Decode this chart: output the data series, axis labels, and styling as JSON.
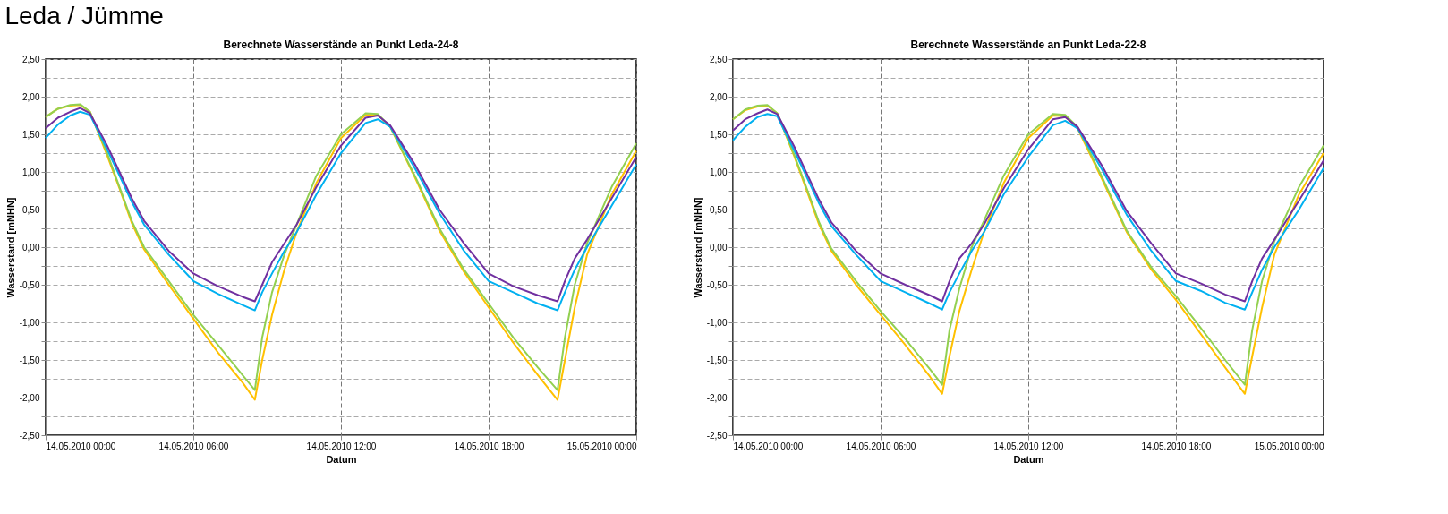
{
  "chart_data": [
    {
      "type": "line",
      "title": "Berechnete Wasserstände an Punkt Leda-24-8",
      "annotations": [
        "Leda / Jümme"
      ],
      "xlabel": "Datum",
      "ylabel": "Wasserstand [mNHN]",
      "grid": true,
      "legend": false,
      "line_style": "solid",
      "x": [
        "2010-05-14T00:00",
        "2010-05-14T00:30",
        "2010-05-14T01:00",
        "2010-05-14T01:24",
        "2010-05-14T01:48",
        "2010-05-14T02:30",
        "2010-05-14T03:00",
        "2010-05-14T03:30",
        "2010-05-14T04:00",
        "2010-05-14T05:00",
        "2010-05-14T06:00",
        "2010-05-14T07:00",
        "2010-05-14T08:00",
        "2010-05-14T08:30",
        "2010-05-14T08:48",
        "2010-05-14T09:12",
        "2010-05-14T09:42",
        "2010-05-14T10:12",
        "2010-05-14T11:00",
        "2010-05-14T12:00",
        "2010-05-14T13:00",
        "2010-05-14T13:30",
        "2010-05-14T14:00",
        "2010-05-14T15:00",
        "2010-05-14T16:00",
        "2010-05-14T17:00",
        "2010-05-14T18:00",
        "2010-05-14T19:00",
        "2010-05-14T20:00",
        "2010-05-14T20:48",
        "2010-05-14T21:06",
        "2010-05-14T21:30",
        "2010-05-14T22:00",
        "2010-05-14T23:00",
        "2010-05-15T00:00"
      ],
      "xlim": [
        "2010-05-14T00:00",
        "2010-05-15T00:00"
      ],
      "xticks": [
        {
          "value": "2010-05-14T00:00",
          "label": "14.05.2010 00:00"
        },
        {
          "value": "2010-05-14T06:00",
          "label": "14.05.2010 06:00"
        },
        {
          "value": "2010-05-14T12:00",
          "label": "14.05.2010 12:00"
        },
        {
          "value": "2010-05-14T18:00",
          "label": "14.05.2010 18:00"
        },
        {
          "value": "2010-05-15T00:00",
          "label": "15.05.2010 00:00"
        }
      ],
      "ylim": [
        -2.5,
        2.5
      ],
      "yticks": [
        {
          "value": -2.5,
          "label": "-2,50"
        },
        {
          "value": -2.25,
          "label": null
        },
        {
          "value": -2,
          "label": "-2,00"
        },
        {
          "value": -1.75,
          "label": null
        },
        {
          "value": -1.5,
          "label": "-1,50"
        },
        {
          "value": -1.25,
          "label": null
        },
        {
          "value": -1,
          "label": "-1,00"
        },
        {
          "value": -0.75,
          "label": null
        },
        {
          "value": -0.5,
          "label": "-0,50"
        },
        {
          "value": -0.25,
          "label": null
        },
        {
          "value": 0,
          "label": "0,00"
        },
        {
          "value": 0.25,
          "label": null
        },
        {
          "value": 0.5,
          "label": "0,50"
        },
        {
          "value": 0.75,
          "label": null
        },
        {
          "value": 1,
          "label": "1,00"
        },
        {
          "value": 1.25,
          "label": null
        },
        {
          "value": 1.5,
          "label": "1,50"
        },
        {
          "value": 1.75,
          "label": null
        },
        {
          "value": 2,
          "label": "2,00"
        },
        {
          "value": 2.25,
          "label": null
        },
        {
          "value": 2.5,
          "label": "2,50"
        }
      ],
      "series": [
        {
          "color": "#ffc000",
          "values": [
            1.73,
            1.84,
            1.88,
            1.89,
            1.8,
            1.22,
            0.78,
            0.32,
            -0.03,
            -0.5,
            -0.95,
            -1.4,
            -1.8,
            -2.03,
            -1.5,
            -0.9,
            -0.3,
            0.2,
            0.85,
            1.45,
            1.76,
            1.76,
            1.6,
            0.93,
            0.22,
            -0.33,
            -0.8,
            -1.27,
            -1.7,
            -2.03,
            -1.5,
            -0.8,
            -0.1,
            0.7,
            1.28
          ]
        },
        {
          "color": "#92d050",
          "values": [
            1.73,
            1.84,
            1.89,
            1.9,
            1.8,
            1.25,
            0.8,
            0.35,
            0.0,
            -0.45,
            -0.9,
            -1.3,
            -1.7,
            -1.9,
            -1.2,
            -0.6,
            -0.1,
            0.3,
            0.95,
            1.5,
            1.78,
            1.77,
            1.6,
            0.95,
            0.25,
            -0.3,
            -0.75,
            -1.2,
            -1.6,
            -1.9,
            -1.2,
            -0.5,
            0.05,
            0.8,
            1.38
          ]
        },
        {
          "color": "#00b0f0",
          "values": [
            1.45,
            1.63,
            1.75,
            1.8,
            1.76,
            1.3,
            0.95,
            0.6,
            0.3,
            -0.1,
            -0.45,
            -0.62,
            -0.77,
            -0.84,
            -0.6,
            -0.35,
            -0.05,
            0.2,
            0.7,
            1.25,
            1.65,
            1.7,
            1.6,
            1.05,
            0.45,
            -0.05,
            -0.45,
            -0.6,
            -0.75,
            -0.84,
            -0.6,
            -0.3,
            0.0,
            0.55,
            1.1
          ]
        },
        {
          "color": "#7030a0",
          "values": [
            1.58,
            1.72,
            1.8,
            1.85,
            1.78,
            1.35,
            1.0,
            0.65,
            0.35,
            -0.05,
            -0.35,
            -0.52,
            -0.66,
            -0.72,
            -0.5,
            -0.2,
            0.05,
            0.3,
            0.8,
            1.35,
            1.72,
            1.75,
            1.62,
            1.1,
            0.5,
            0.05,
            -0.35,
            -0.52,
            -0.64,
            -0.72,
            -0.45,
            -0.15,
            0.1,
            0.65,
            1.2
          ]
        }
      ]
    },
    {
      "type": "line",
      "title": "Berechnete Wasserstände an Punkt Leda-22-8",
      "xlabel": "Datum",
      "ylabel": "Wasserstand [mNHN]",
      "grid": true,
      "legend": false,
      "line_style": "solid",
      "x": [
        "2010-05-14T00:00",
        "2010-05-14T00:30",
        "2010-05-14T01:00",
        "2010-05-14T01:24",
        "2010-05-14T01:48",
        "2010-05-14T02:30",
        "2010-05-14T03:00",
        "2010-05-14T03:30",
        "2010-05-14T04:00",
        "2010-05-14T05:00",
        "2010-05-14T06:00",
        "2010-05-14T07:00",
        "2010-05-14T08:00",
        "2010-05-14T08:30",
        "2010-05-14T08:48",
        "2010-05-14T09:12",
        "2010-05-14T09:42",
        "2010-05-14T10:12",
        "2010-05-14T11:00",
        "2010-05-14T12:00",
        "2010-05-14T13:00",
        "2010-05-14T13:30",
        "2010-05-14T14:00",
        "2010-05-14T15:00",
        "2010-05-14T16:00",
        "2010-05-14T17:00",
        "2010-05-14T18:00",
        "2010-05-14T19:00",
        "2010-05-14T20:00",
        "2010-05-14T20:48",
        "2010-05-14T21:06",
        "2010-05-14T21:30",
        "2010-05-14T22:00",
        "2010-05-14T23:00",
        "2010-05-15T00:00"
      ],
      "xlim": [
        "2010-05-14T00:00",
        "2010-05-15T00:00"
      ],
      "xticks": [
        {
          "value": "2010-05-14T00:00",
          "label": "14.05.2010 00:00"
        },
        {
          "value": "2010-05-14T06:00",
          "label": "14.05.2010 06:00"
        },
        {
          "value": "2010-05-14T12:00",
          "label": "14.05.2010 12:00"
        },
        {
          "value": "2010-05-14T18:00",
          "label": "14.05.2010 18:00"
        },
        {
          "value": "2010-05-15T00:00",
          "label": "15.05.2010 00:00"
        }
      ],
      "ylim": [
        -2.5,
        2.5
      ],
      "yticks": [
        {
          "value": -2.5,
          "label": "-2,50"
        },
        {
          "value": -2.25,
          "label": null
        },
        {
          "value": -2,
          "label": "-2,00"
        },
        {
          "value": -1.75,
          "label": null
        },
        {
          "value": -1.5,
          "label": "-1,50"
        },
        {
          "value": -1.25,
          "label": null
        },
        {
          "value": -1,
          "label": "-1,00"
        },
        {
          "value": -0.75,
          "label": null
        },
        {
          "value": -0.5,
          "label": "-0,50"
        },
        {
          "value": -0.25,
          "label": null
        },
        {
          "value": 0,
          "label": "0,00"
        },
        {
          "value": 0.25,
          "label": null
        },
        {
          "value": 0.5,
          "label": "0,50"
        },
        {
          "value": 0.75,
          "label": null
        },
        {
          "value": 1,
          "label": "1,00"
        },
        {
          "value": 1.25,
          "label": null
        },
        {
          "value": 1.5,
          "label": "1,50"
        },
        {
          "value": 1.75,
          "label": null
        },
        {
          "value": 2,
          "label": "2,00"
        },
        {
          "value": 2.25,
          "label": null
        },
        {
          "value": 2.5,
          "label": "2,50"
        }
      ],
      "series": [
        {
          "color": "#ffc000",
          "values": [
            1.7,
            1.82,
            1.87,
            1.88,
            1.78,
            1.2,
            0.75,
            0.3,
            -0.05,
            -0.5,
            -0.9,
            -1.3,
            -1.72,
            -1.95,
            -1.45,
            -0.85,
            -0.3,
            0.2,
            0.85,
            1.45,
            1.75,
            1.74,
            1.58,
            0.9,
            0.2,
            -0.3,
            -0.7,
            -1.15,
            -1.6,
            -1.95,
            -1.45,
            -0.8,
            -0.1,
            0.7,
            1.25
          ]
        },
        {
          "color": "#92d050",
          "values": [
            1.7,
            1.83,
            1.88,
            1.89,
            1.78,
            1.22,
            0.78,
            0.33,
            -0.02,
            -0.45,
            -0.85,
            -1.22,
            -1.62,
            -1.83,
            -1.1,
            -0.55,
            0.0,
            0.35,
            0.95,
            1.5,
            1.77,
            1.76,
            1.6,
            0.93,
            0.22,
            -0.27,
            -0.65,
            -1.07,
            -1.5,
            -1.83,
            -1.1,
            -0.45,
            0.08,
            0.8,
            1.35
          ]
        },
        {
          "color": "#00b0f0",
          "values": [
            1.42,
            1.6,
            1.73,
            1.77,
            1.74,
            1.28,
            0.93,
            0.58,
            0.28,
            -0.1,
            -0.45,
            -0.6,
            -0.75,
            -0.83,
            -0.6,
            -0.35,
            -0.05,
            0.2,
            0.7,
            1.2,
            1.62,
            1.68,
            1.58,
            1.03,
            0.43,
            -0.05,
            -0.45,
            -0.58,
            -0.74,
            -0.83,
            -0.6,
            -0.3,
            0.0,
            0.5,
            1.05
          ]
        },
        {
          "color": "#7030a0",
          "values": [
            1.55,
            1.7,
            1.78,
            1.83,
            1.77,
            1.33,
            0.98,
            0.63,
            0.33,
            -0.05,
            -0.35,
            -0.5,
            -0.64,
            -0.72,
            -0.45,
            -0.15,
            0.05,
            0.3,
            0.78,
            1.3,
            1.7,
            1.73,
            1.6,
            1.08,
            0.48,
            0.05,
            -0.35,
            -0.48,
            -0.63,
            -0.72,
            -0.45,
            -0.15,
            0.1,
            0.62,
            1.15
          ]
        }
      ]
    }
  ]
}
